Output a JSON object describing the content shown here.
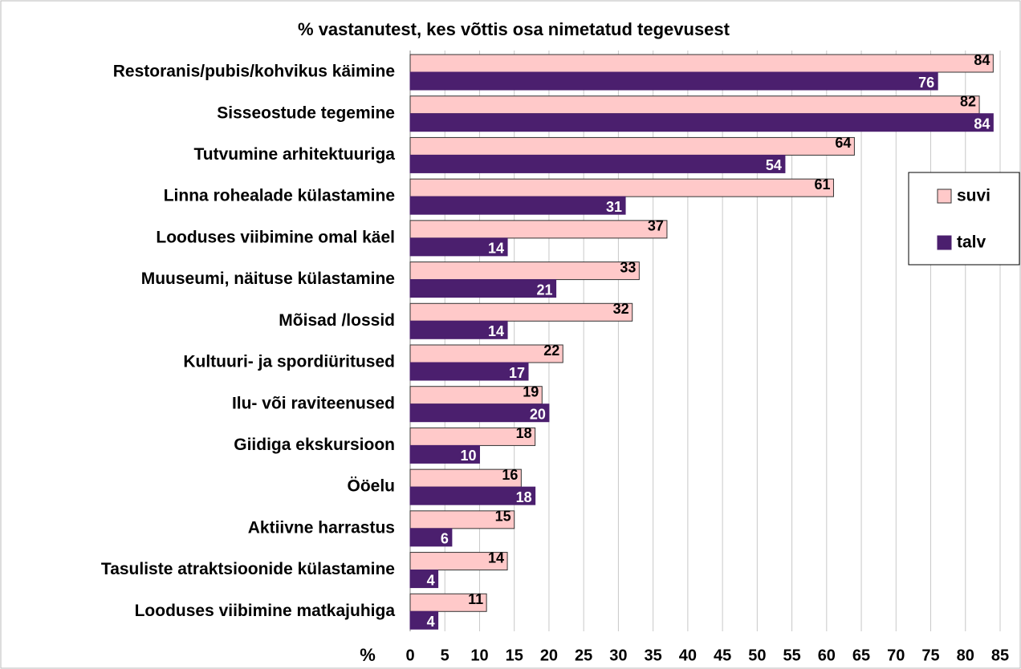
{
  "chart_data": {
    "type": "barh",
    "title": "% vastanutest, kes võttis osa nimetatud tegevusest",
    "xlabel": "%",
    "categories": [
      "Restoranis/pubis/kohvikus käimine",
      "Sisseostude tegemine",
      "Tutvumine arhitektuuriga",
      "Linna rohealade külastamine",
      "Looduses viibimine omal käel",
      "Muuseumi, näituse külastamine",
      "Mõisad /lossid",
      "Kultuuri- ja spordiüritused",
      "Ilu- või raviteenused",
      "Giidiga ekskursioon",
      "Ööelu",
      "Aktiivne harrastus",
      "Tasuliste atraktsioonide külastamine",
      "Looduses viibimine matkajuhiga"
    ],
    "series": [
      {
        "name": "suvi",
        "color": "#ffc9c9",
        "values": [
          84,
          82,
          64,
          61,
          37,
          33,
          32,
          22,
          19,
          18,
          16,
          15,
          14,
          11
        ]
      },
      {
        "name": "talv",
        "color": "#4b1f6e",
        "values": [
          76,
          84,
          54,
          31,
          14,
          21,
          14,
          17,
          20,
          10,
          18,
          6,
          4,
          4
        ]
      }
    ],
    "xlim": [
      0,
      85
    ],
    "xticks": [
      0,
      5,
      10,
      15,
      20,
      25,
      30,
      35,
      40,
      45,
      50,
      55,
      60,
      65,
      70,
      75,
      80,
      85
    ],
    "grid": true,
    "legend": "right"
  }
}
